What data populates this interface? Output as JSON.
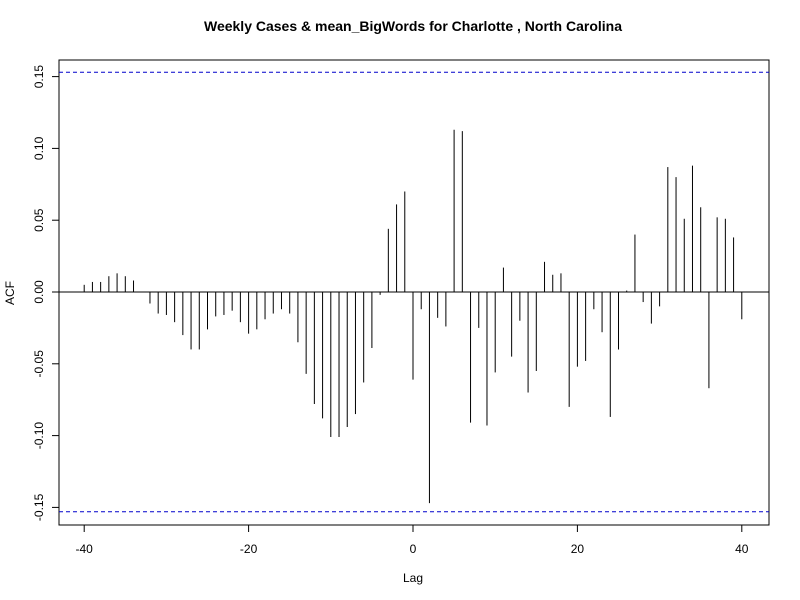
{
  "chart_data": {
    "type": "bar",
    "title": "Weekly Cases & mean_BigWords for Charlotte , North Carolina",
    "xlabel": "Lag",
    "ylabel": "ACF",
    "xlim": [
      -40,
      40
    ],
    "ylim": [
      -0.15,
      0.15
    ],
    "x_ticks": [
      "-40",
      "-20",
      "0",
      "20",
      "40"
    ],
    "y_ticks": [
      "-0.15",
      "-0.10",
      "-0.05",
      "0.00",
      "0.05",
      "0.10",
      "0.15"
    ],
    "x_tick_values": [
      -40,
      -20,
      0,
      20,
      40
    ],
    "y_tick_values": [
      -0.15,
      -0.1,
      -0.05,
      0.0,
      0.05,
      0.1,
      0.15
    ],
    "confidence_bound": 0.153,
    "confidence_color": "#0000cc",
    "lags": [
      -40,
      -39,
      -38,
      -37,
      -36,
      -35,
      -34,
      -33,
      -32,
      -31,
      -30,
      -29,
      -28,
      -27,
      -26,
      -25,
      -24,
      -23,
      -22,
      -21,
      -20,
      -19,
      -18,
      -17,
      -16,
      -15,
      -14,
      -13,
      -12,
      -11,
      -10,
      -9,
      -8,
      -7,
      -6,
      -5,
      -4,
      -3,
      -2,
      -1,
      0,
      1,
      2,
      3,
      4,
      5,
      6,
      7,
      8,
      9,
      10,
      11,
      12,
      13,
      14,
      15,
      16,
      17,
      18,
      19,
      20,
      21,
      22,
      23,
      24,
      25,
      26,
      27,
      28,
      29,
      30,
      31,
      32,
      33,
      34,
      35,
      36,
      37,
      38,
      39,
      40
    ],
    "values": [
      0.005,
      0.007,
      0.007,
      0.011,
      0.013,
      0.011,
      0.008,
      0.0,
      -0.008,
      -0.015,
      -0.016,
      -0.021,
      -0.03,
      -0.04,
      -0.04,
      -0.026,
      -0.017,
      -0.016,
      -0.013,
      -0.021,
      -0.029,
      -0.026,
      -0.019,
      -0.015,
      -0.012,
      -0.015,
      -0.035,
      -0.057,
      -0.078,
      -0.088,
      -0.101,
      -0.101,
      -0.094,
      -0.085,
      -0.063,
      -0.039,
      -0.002,
      0.044,
      0.061,
      0.07,
      -0.061,
      -0.012,
      -0.147,
      -0.018,
      -0.024,
      0.113,
      0.112,
      -0.091,
      -0.025,
      -0.093,
      -0.056,
      0.017,
      -0.045,
      -0.02,
      -0.07,
      -0.055,
      0.021,
      0.012,
      0.013,
      -0.08,
      -0.052,
      -0.048,
      -0.012,
      -0.028,
      -0.087,
      -0.04,
      0.001,
      0.04,
      -0.007,
      -0.022,
      -0.01,
      0.087,
      0.08,
      0.051,
      0.088,
      0.059,
      -0.067,
      0.052,
      0.051,
      0.038,
      -0.019
    ]
  }
}
